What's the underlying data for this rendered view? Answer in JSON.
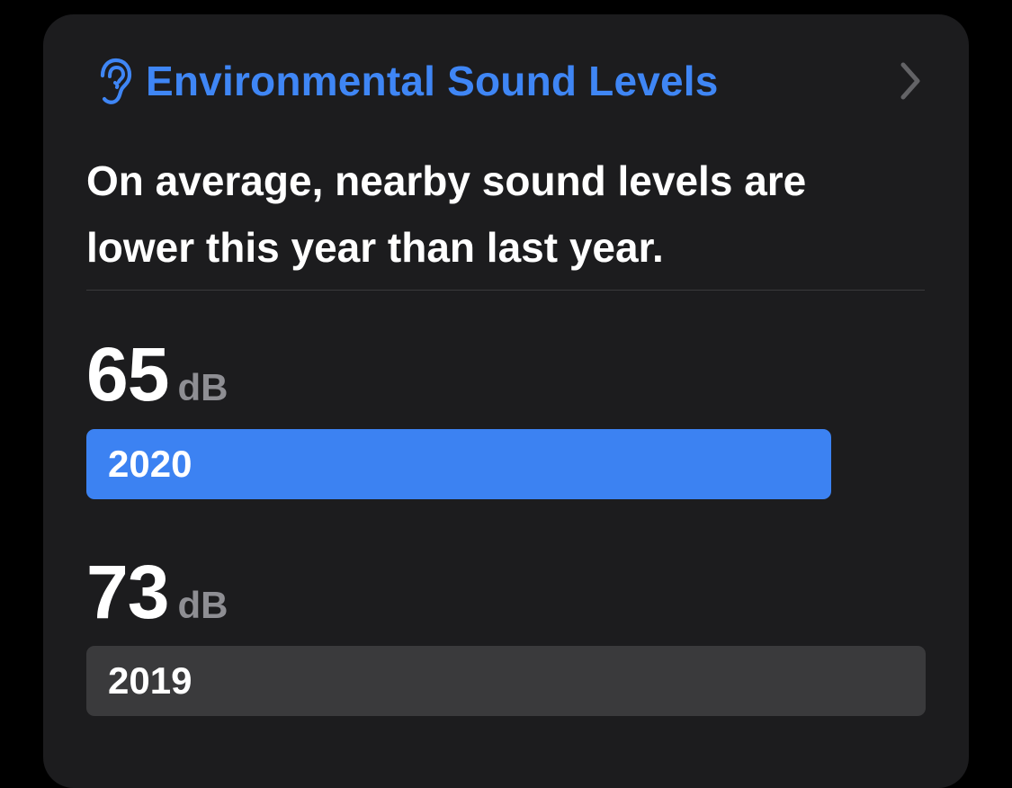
{
  "card": {
    "title": "Environmental Sound Levels",
    "icon": "ear-icon",
    "disclosure_icon": "chevron-right-icon",
    "summary": "On average, nearby sound levels are lower this year than last year."
  },
  "readings": [
    {
      "value": "65",
      "unit": "dB",
      "year": "2020",
      "bar_color": "#3c82f2",
      "fill_fraction": 0.887
    },
    {
      "value": "73",
      "unit": "dB",
      "year": "2019",
      "bar_color": "#3a3a3c",
      "fill_fraction": 1.0
    }
  ],
  "colors": {
    "accent": "#3f86f5",
    "card_background": "#1c1c1e",
    "secondary_text": "#8e8e93"
  }
}
